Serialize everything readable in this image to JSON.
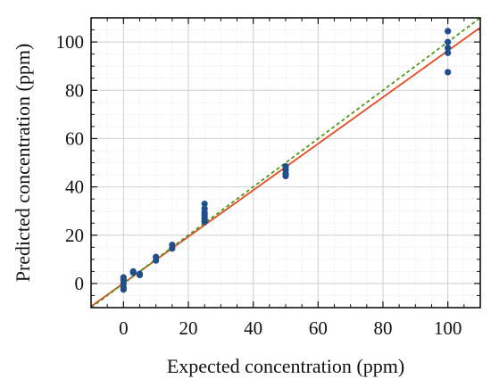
{
  "chart_data": {
    "type": "scatter",
    "xlabel": "Expected concentration (ppm)",
    "ylabel": "Predicted concentration (ppm)",
    "xlim": [
      -10,
      110
    ],
    "ylim": [
      -10,
      110
    ],
    "x_ticks": [
      0,
      20,
      40,
      60,
      80,
      100
    ],
    "y_ticks": [
      0,
      20,
      40,
      60,
      80,
      100
    ],
    "x_minor_step": 5,
    "y_minor_step": 5,
    "grid": true,
    "series": [
      {
        "kind": "points",
        "color": "#1f4e8c",
        "x": [
          0,
          0,
          0,
          0,
          0,
          3,
          3,
          5,
          5,
          10,
          10,
          15,
          15,
          25,
          25,
          25,
          25,
          25,
          25,
          25,
          50,
          50,
          50,
          50,
          100,
          100,
          100,
          100,
          100
        ],
        "y": [
          2.5,
          1.5,
          0,
          -1.5,
          -2.5,
          5,
          4.5,
          4,
          3.5,
          11,
          9.5,
          16,
          14.5,
          33,
          31,
          29.5,
          28.5,
          27.5,
          26.5,
          25.5,
          48.5,
          47,
          45.5,
          44.5,
          104.5,
          100,
          97.5,
          95.5,
          87.5
        ]
      },
      {
        "kind": "fit-line",
        "color": "#ea4a24",
        "style": "solid",
        "x": [
          -10,
          110
        ],
        "y": [
          -9.5,
          106.0
        ]
      },
      {
        "kind": "identity-line",
        "color": "#4c9a1c",
        "style": "dashed",
        "x": [
          -10,
          110
        ],
        "y": [
          -10,
          110
        ]
      }
    ]
  }
}
